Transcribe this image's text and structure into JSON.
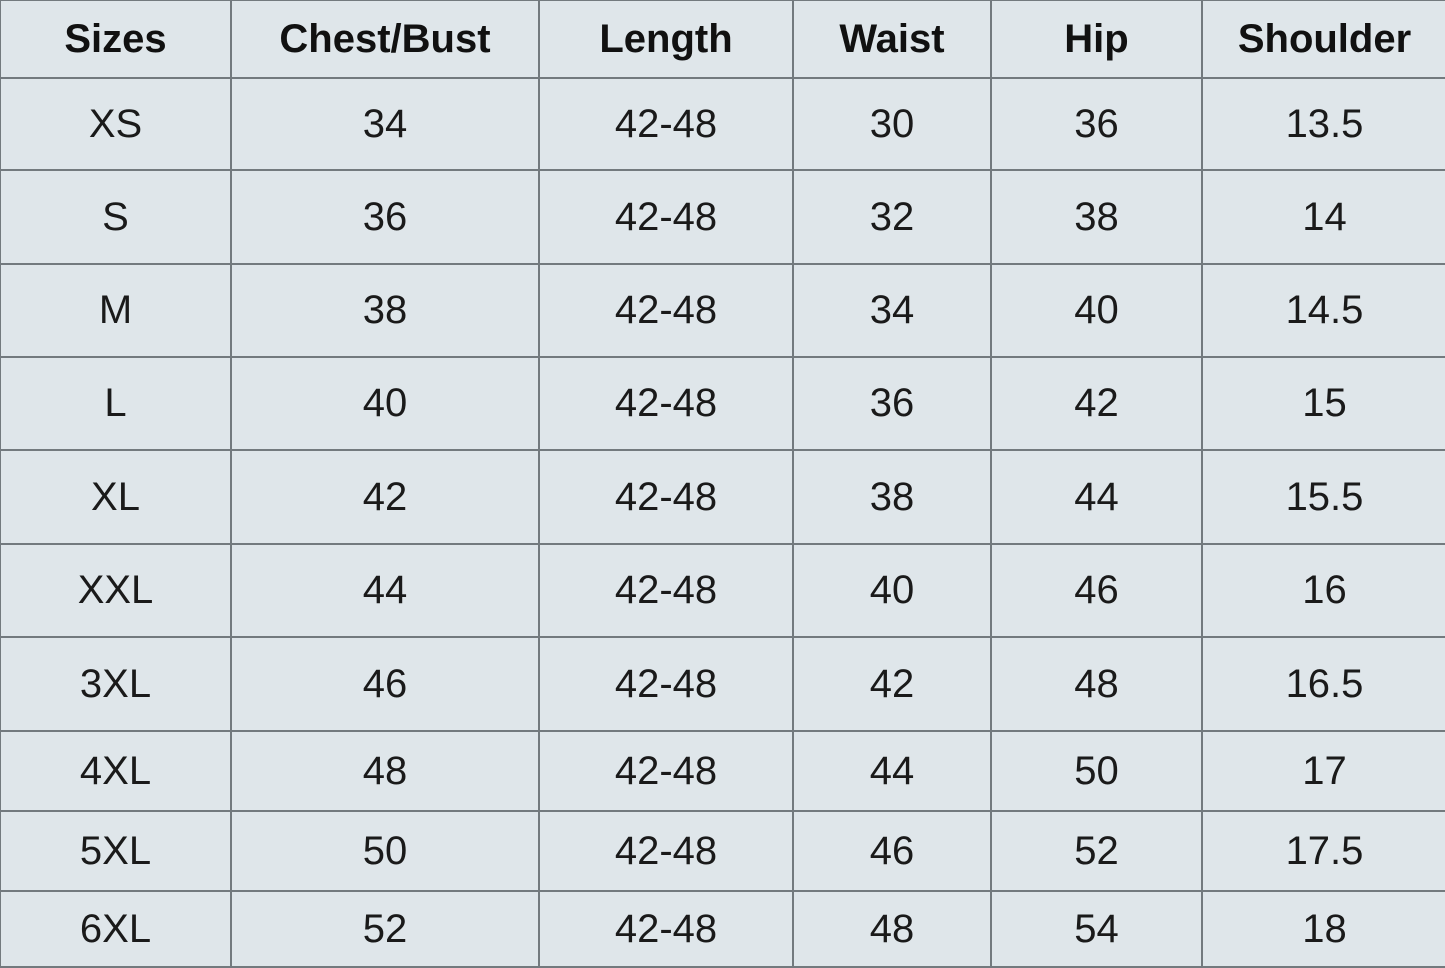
{
  "headers": [
    "Sizes",
    "Chest/Bust",
    "Length",
    "Waist",
    "Hip",
    "Shoulder"
  ],
  "rows": [
    [
      "XS",
      "34",
      "42-48",
      "30",
      "36",
      "13.5"
    ],
    [
      "S",
      "36",
      "42-48",
      "32",
      "38",
      "14"
    ],
    [
      "M",
      "38",
      "42-48",
      "34",
      "40",
      "14.5"
    ],
    [
      "L",
      "40",
      "42-48",
      "36",
      "42",
      "15"
    ],
    [
      "XL",
      "42",
      "42-48",
      "38",
      "44",
      "15.5"
    ],
    [
      "XXL",
      "44",
      "42-48",
      "40",
      "46",
      "16"
    ],
    [
      "3XL",
      "46",
      "42-48",
      "42",
      "48",
      "16.5"
    ],
    [
      "4XL",
      "48",
      "42-48",
      "44",
      "50",
      "17"
    ],
    [
      "5XL",
      "50",
      "42-48",
      "46",
      "52",
      "17.5"
    ],
    [
      "6XL",
      "52",
      "42-48",
      "48",
      "54",
      "18"
    ]
  ],
  "colors": {
    "background": "#dfe6ea",
    "grid": "#737a7e",
    "text": "#1a1a1a"
  }
}
